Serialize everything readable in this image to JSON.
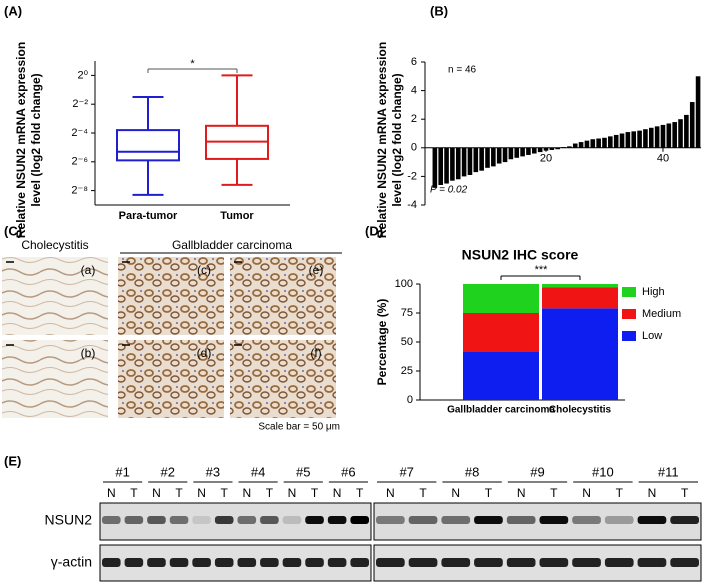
{
  "panel_labels": [
    "(A)",
    "(B)",
    "(C)",
    "(D)",
    "(E)"
  ],
  "chart_data": [
    {
      "type": "box",
      "ylabel": [
        "Relative NSUN2 mRNA expression",
        "level (log2 fold change)"
      ],
      "categories": [
        "Para-tumor",
        "Tumor"
      ],
      "boxes": [
        {
          "min": -8.3,
          "q1": -5.9,
          "median": -5.3,
          "q3": -3.8,
          "max": -1.5,
          "color": "#1f1fd0"
        },
        {
          "min": -7.6,
          "q1": -5.8,
          "median": -4.6,
          "q3": -3.5,
          "max": 0,
          "color": "#e01b1b"
        }
      ],
      "ylim": [
        -9,
        1
      ],
      "yticks": [
        {
          "value": 0,
          "label": "2⁰"
        },
        {
          "value": -2,
          "label": "2⁻²"
        },
        {
          "value": -4,
          "label": "2⁻⁴"
        },
        {
          "value": -6,
          "label": "2⁻⁶"
        },
        {
          "value": -8,
          "label": "2⁻⁸"
        }
      ],
      "annotation": "*"
    },
    {
      "type": "bar",
      "ylabel": [
        "Relative NSUN2 mRNA expression",
        "level (log2 fold change)"
      ],
      "x": [
        1,
        2,
        3,
        4,
        5,
        6,
        7,
        8,
        9,
        10,
        11,
        12,
        13,
        14,
        15,
        16,
        17,
        18,
        19,
        20,
        21,
        22,
        23,
        24,
        25,
        26,
        27,
        28,
        29,
        30,
        31,
        32,
        33,
        34,
        35,
        36,
        37,
        38,
        39,
        40,
        41,
        42,
        43,
        44,
        45,
        46
      ],
      "values": [
        -2.8,
        -2.6,
        -2.5,
        -2.3,
        -2.2,
        -2.0,
        -1.9,
        -1.7,
        -1.6,
        -1.4,
        -1.3,
        -1.1,
        -1.0,
        -0.8,
        -0.7,
        -0.6,
        -0.5,
        -0.4,
        -0.3,
        -0.2,
        -0.15,
        -0.1,
        0.05,
        0.1,
        0.3,
        0.4,
        0.5,
        0.6,
        0.65,
        0.7,
        0.8,
        0.9,
        1.0,
        1.1,
        1.15,
        1.2,
        1.3,
        1.4,
        1.5,
        1.6,
        1.7,
        1.8,
        2.0,
        2.3,
        3.2,
        5.0
      ],
      "color": "#000000",
      "xlim": [
        0,
        46.5
      ],
      "xticks": [
        20,
        40
      ],
      "ylim": [
        -4,
        6
      ],
      "yticks": [
        -4,
        -2,
        0,
        2,
        4,
        6
      ],
      "annotations": [
        "n = 46",
        "P = 0.02"
      ]
    },
    {
      "type": "stacked_bar",
      "title": "NSUN2 IHC score",
      "ylabel": "Percentage (%)",
      "categories": [
        "Gallbladder carcinoma",
        "Cholecystitis"
      ],
      "series": [
        {
          "name": "Low",
          "color": "#0f1ef0",
          "values": [
            42,
            79
          ]
        },
        {
          "name": "Medium",
          "color": "#f01414",
          "values": [
            33,
            18
          ]
        },
        {
          "name": "High",
          "color": "#1ed21e",
          "values": [
            25,
            3
          ]
        }
      ],
      "ylim": [
        0,
        100
      ],
      "yticks": [
        0,
        25,
        50,
        75,
        100
      ],
      "annotation": "***",
      "legend": "right"
    }
  ],
  "histology": {
    "groups": [
      "Cholecystitis",
      "Gallbladder carcinoma"
    ],
    "images": [
      "(a)",
      "(b)",
      "(c)",
      "(d)",
      "(e)",
      "(f)"
    ],
    "scale_bar": "Scale bar = 50 μm"
  },
  "western_blot": {
    "samples": [
      "#1",
      "#2",
      "#3",
      "#4",
      "#5",
      "#6",
      "#7",
      "#8",
      "#9",
      "#10",
      "#11"
    ],
    "lanes": [
      "N",
      "T"
    ],
    "rows": [
      "NSUN2",
      "γ-actin"
    ]
  }
}
